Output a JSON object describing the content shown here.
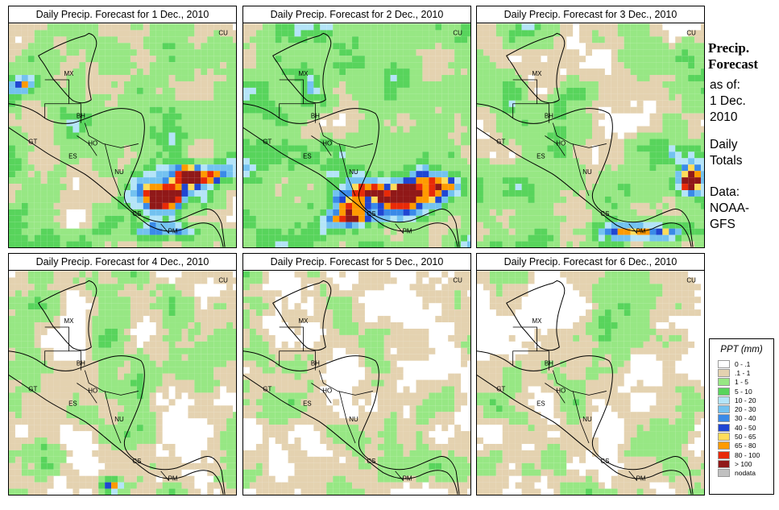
{
  "panels": [
    {
      "title": "Daily Precip. Forecast for  1 Dec., 2010",
      "day": 1
    },
    {
      "title": "Daily Precip. Forecast for  2 Dec., 2010",
      "day": 2
    },
    {
      "title": "Daily Precip. Forecast for  3 Dec., 2010",
      "day": 3
    },
    {
      "title": "Daily Precip. Forecast for  4 Dec., 2010",
      "day": 4
    },
    {
      "title": "Daily Precip. Forecast for  5 Dec., 2010",
      "day": 5
    },
    {
      "title": "Daily Precip. Forecast for  6 Dec., 2010",
      "day": 6
    }
  ],
  "map_labels": [
    "MX",
    "BH",
    "GT",
    "HO",
    "ES",
    "NU",
    "CS",
    "PM",
    "CU"
  ],
  "side": {
    "title_line1": "Precip.",
    "title_line2": "Forecast",
    "asof": "as of:",
    "date1": "1 Dec.",
    "date2": "2010",
    "daily": "Daily",
    "totals": "Totals",
    "data_label": "Data:",
    "source1": "NOAA-",
    "source2": "GFS"
  },
  "legend": {
    "title": "PPT (mm)",
    "items": [
      {
        "label": "0 - .1",
        "color": "#ffffff"
      },
      {
        "label": ".1 - 1",
        "color": "#e4d2b0"
      },
      {
        "label": "1 - 5",
        "color": "#97e784"
      },
      {
        "label": "5 - 10",
        "color": "#58d45c"
      },
      {
        "label": "10 - 20",
        "color": "#b4e4f8"
      },
      {
        "label": "20 - 30",
        "color": "#73c2f0"
      },
      {
        "label": "30 - 40",
        "color": "#3a8ae8"
      },
      {
        "label": "40 - 50",
        "color": "#2046d2"
      },
      {
        "label": "50 - 65",
        "color": "#ffdc5a"
      },
      {
        "label": "65 - 80",
        "color": "#ff9a00"
      },
      {
        "label": "80 - 100",
        "color": "#e82a08"
      },
      {
        "label": "> 100",
        "color": "#901818"
      },
      {
        "label": "nodata",
        "color": "#c0c0c0"
      }
    ]
  }
}
